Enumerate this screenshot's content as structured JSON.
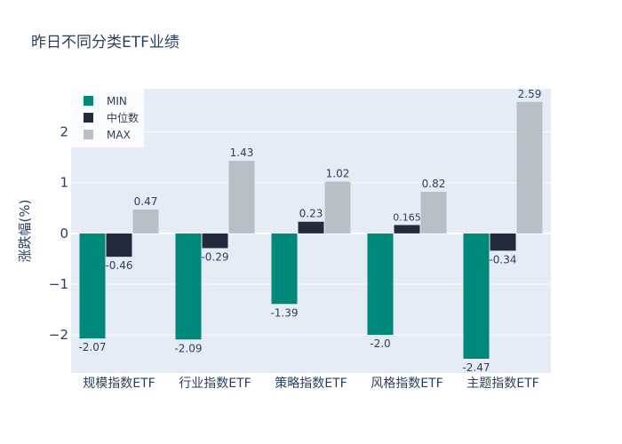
{
  "chart_data": {
    "type": "bar",
    "title": "昨日不同分类ETF业绩",
    "ylabel": "涨跌幅(%)",
    "xlabel": "",
    "ylim": [
      -2.75,
      2.85
    ],
    "yticks": [
      -2,
      -1,
      0,
      1,
      2
    ],
    "ytick_labels": [
      "−2",
      "−1",
      "0",
      "1",
      "2"
    ],
    "categories": [
      "规模指数ETF",
      "行业指数ETF",
      "策略指数ETF",
      "风格指数ETF",
      "主题指数ETF"
    ],
    "series": [
      {
        "name": "MIN",
        "color": "#00897b",
        "values": [
          -2.07,
          -2.09,
          -1.39,
          -2.0,
          -2.47
        ],
        "labels": [
          "-2.07",
          "-2.09",
          "-1.39",
          "-2.0",
          "-2.47"
        ]
      },
      {
        "name": "中位数",
        "color": "#212b3d",
        "values": [
          -0.46,
          -0.29,
          0.23,
          0.165,
          -0.34
        ],
        "labels": [
          "-0.46",
          "-0.29",
          "0.23",
          "0.165",
          "-0.34"
        ]
      },
      {
        "name": "MAX",
        "color": "#b8bfc7",
        "values": [
          0.47,
          1.43,
          1.02,
          0.82,
          2.59
        ],
        "labels": [
          "0.47",
          "1.43",
          "1.02",
          "0.82",
          "2.59"
        ]
      }
    ],
    "legend_position": "top-left",
    "grid": true,
    "plot_bg": "#e5ecf6"
  }
}
